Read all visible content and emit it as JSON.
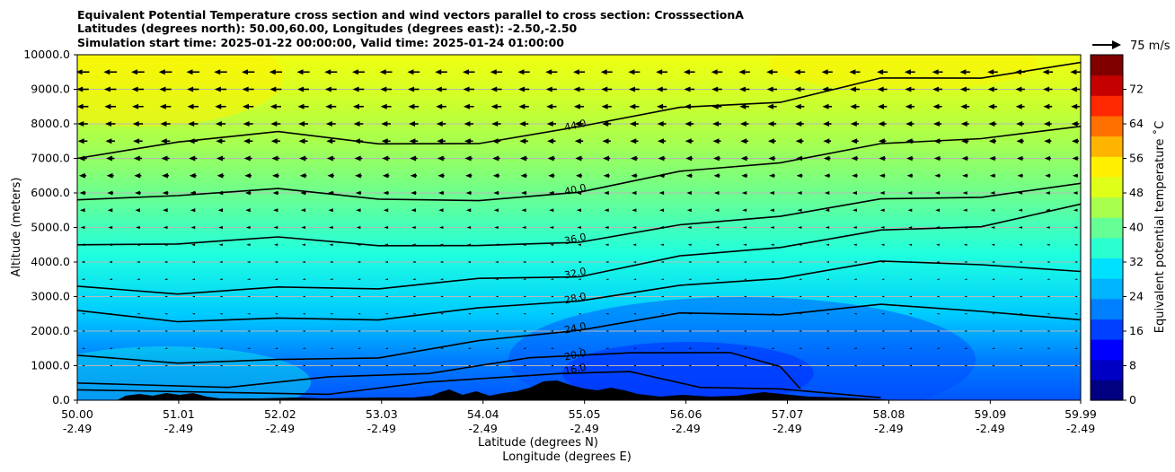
{
  "title_lines": [
    "Equivalent Potential Temperature cross section and wind vectors parallel to cross section: CrosssectionA",
    "Latitudes (degrees north): 50.00,60.00, Longitudes (degrees east): -2.50,-2.50",
    "Simulation start time: 2025-01-22 00:00:00, Valid time: 2025-01-24 01:00:00"
  ],
  "quiver_key_label": "75 m/s",
  "colorbar": {
    "label": "Equivalent potential temperature ˚C",
    "min": 0,
    "max": 80,
    "ticks": [
      "0",
      "8",
      "16",
      "24",
      "32",
      "40",
      "48",
      "56",
      "64",
      "72"
    ],
    "colors": [
      "#000080",
      "#0000c4",
      "#0000ff",
      "#0040ff",
      "#0080ff",
      "#00b4ff",
      "#00e0ff",
      "#2affd0",
      "#66ff96",
      "#a8ff4e",
      "#e0ff18",
      "#fff000",
      "#ffb400",
      "#ff7000",
      "#ff2800",
      "#c40000",
      "#800000"
    ]
  },
  "axes": {
    "ylabel": "Altitude (meters)",
    "xlabel_1": "Latitude (degrees N)",
    "xlabel_2": "Longitude (degrees E)",
    "y_ticks": [
      "0.0",
      "1000.0",
      "2000.0",
      "3000.0",
      "4000.0",
      "5000.0",
      "6000.0",
      "7000.0",
      "8000.0",
      "9000.0",
      "10000.0"
    ],
    "x_ticks_lat": [
      "50.00",
      "51.01",
      "52.02",
      "53.03",
      "54.04",
      "55.05",
      "56.06",
      "57.07",
      "58.08",
      "59.09",
      "59.99"
    ],
    "x_ticks_lon": [
      "-2.49",
      "-2.49",
      "-2.49",
      "-2.49",
      "-2.49",
      "-2.49",
      "-2.49",
      "-2.49",
      "-2.49",
      "-2.49",
      "-2.49"
    ]
  },
  "chart_data": {
    "type": "heatmap",
    "xlabel": "Latitude (degrees N) / Longitude (degrees E)",
    "ylabel": "Altitude (meters)",
    "xlim": [
      50.0,
      59.99
    ],
    "ylim": [
      0,
      10000
    ],
    "value_label": "Equivalent potential temperature ˚C",
    "value_range": [
      0,
      80
    ],
    "contours": [
      {
        "level": 16.0,
        "points": [
          [
            50.0,
            300
          ],
          [
            52.5,
            250
          ],
          [
            53.5,
            450
          ],
          [
            54.8,
            850
          ],
          [
            55.5,
            750
          ],
          [
            56.2,
            450
          ],
          [
            57.0,
            250
          ],
          [
            58.0,
            150
          ]
        ]
      },
      {
        "level": 20.0,
        "points": [
          [
            50.0,
            500
          ],
          [
            51.5,
            450
          ],
          [
            52.5,
            600
          ],
          [
            53.5,
            850
          ],
          [
            54.5,
            1150
          ],
          [
            55.5,
            1450
          ],
          [
            56.5,
            1300
          ],
          [
            57.0,
            1050
          ],
          [
            57.2,
            250
          ]
        ]
      },
      {
        "level": 24.0,
        "points": [
          [
            50.0,
            1300
          ],
          [
            51.0,
            1150
          ],
          [
            52.0,
            1100
          ],
          [
            53.0,
            1300
          ],
          [
            54.0,
            1650
          ],
          [
            55.0,
            2100
          ],
          [
            56.0,
            2450
          ],
          [
            57.0,
            2550
          ],
          [
            58.0,
            2700
          ],
          [
            59.0,
            2650
          ],
          [
            59.99,
            2250
          ]
        ]
      },
      {
        "level": 28.0,
        "points": [
          [
            50.0,
            2600
          ],
          [
            51.0,
            2350
          ],
          [
            52.0,
            2300
          ],
          [
            53.0,
            2400
          ],
          [
            54.0,
            2600
          ],
          [
            55.0,
            2950
          ],
          [
            56.0,
            3250
          ],
          [
            57.0,
            3600
          ],
          [
            58.0,
            3950
          ],
          [
            59.0,
            4000
          ],
          [
            59.99,
            3650
          ]
        ]
      },
      {
        "level": 32.0,
        "points": [
          [
            50.0,
            3300
          ],
          [
            51.0,
            3150
          ],
          [
            52.0,
            3200
          ],
          [
            53.0,
            3300
          ],
          [
            54.0,
            3450
          ],
          [
            55.0,
            3650
          ],
          [
            56.0,
            4100
          ],
          [
            57.0,
            4500
          ],
          [
            58.0,
            4850
          ],
          [
            59.0,
            5100
          ],
          [
            59.99,
            5600
          ]
        ]
      },
      {
        "level": 36.0,
        "points": [
          [
            50.0,
            4500
          ],
          [
            51.0,
            4600
          ],
          [
            52.0,
            4650
          ],
          [
            53.0,
            4550
          ],
          [
            54.0,
            4400
          ],
          [
            55.0,
            4650
          ],
          [
            56.0,
            5000
          ],
          [
            57.0,
            5400
          ],
          [
            58.0,
            5750
          ],
          [
            59.0,
            5950
          ],
          [
            59.99,
            6200
          ]
        ]
      },
      {
        "level": 40.0,
        "points": [
          [
            50.0,
            5800
          ],
          [
            51.0,
            6000
          ],
          [
            52.0,
            6050
          ],
          [
            53.0,
            5900
          ],
          [
            54.0,
            5700
          ],
          [
            55.0,
            6100
          ],
          [
            56.0,
            6550
          ],
          [
            57.0,
            6950
          ],
          [
            58.0,
            7350
          ],
          [
            59.0,
            7650
          ],
          [
            59.99,
            7850
          ]
        ]
      },
      {
        "level": 44.0,
        "points": [
          [
            50.0,
            7000
          ],
          [
            51.0,
            7550
          ],
          [
            52.0,
            7700
          ],
          [
            53.0,
            7500
          ],
          [
            54.0,
            7350
          ],
          [
            55.0,
            8000
          ],
          [
            56.0,
            8400
          ],
          [
            57.0,
            8700
          ],
          [
            58.0,
            9250
          ],
          [
            59.0,
            9400
          ],
          [
            59.99,
            9700
          ]
        ]
      }
    ],
    "wind_vectors": {
      "direction": "westward (toward lower latitude)",
      "reference_speed": 75,
      "reference_unit": "m/s",
      "rows": [
        {
          "altitude": 9500,
          "speed": 35
        },
        {
          "altitude": 9000,
          "speed": 32
        },
        {
          "altitude": 8500,
          "speed": 30
        },
        {
          "altitude": 8000,
          "speed": 27
        },
        {
          "altitude": 7500,
          "speed": 25
        },
        {
          "altitude": 7000,
          "speed": 22
        },
        {
          "altitude": 6500,
          "speed": 19
        },
        {
          "altitude": 6000,
          "speed": 16
        },
        {
          "altitude": 5500,
          "speed": 14
        },
        {
          "altitude": 5000,
          "speed": 11
        },
        {
          "altitude": 4500,
          "speed": 9
        },
        {
          "altitude": 4000,
          "speed": 7
        },
        {
          "altitude": 3500,
          "speed": 6
        },
        {
          "altitude": 3000,
          "speed": 5
        },
        {
          "altitude": 2500,
          "speed": 4
        },
        {
          "altitude": 2000,
          "speed": 3
        },
        {
          "altitude": 1500,
          "speed": 2
        },
        {
          "altitude": 1000,
          "speed": 1
        }
      ]
    }
  }
}
